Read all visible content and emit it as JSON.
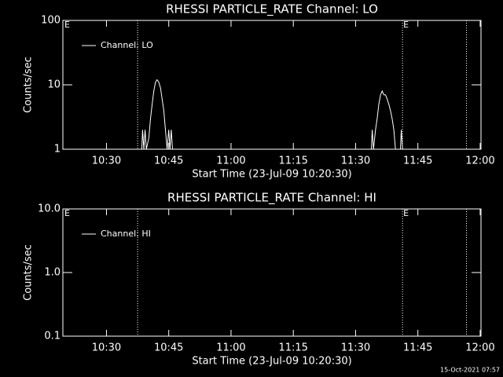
{
  "chart_data": [
    {
      "type": "line",
      "title": "RHESSI PARTICLE_RATE Channel: LO",
      "x_label": "Start Time (23-Jul-09 10:20:30)",
      "y_label": "Counts/sec",
      "log_y": true,
      "legend": "upper left",
      "xlim": [
        619.5,
        720.2
      ],
      "xticks": [
        {
          "value": 630,
          "label": "10:30"
        },
        {
          "value": 645,
          "label": "10:45"
        },
        {
          "value": 660,
          "label": "11:00"
        },
        {
          "value": 675,
          "label": "11:15"
        },
        {
          "value": 690,
          "label": "11:30"
        },
        {
          "value": 705,
          "label": "11:45"
        },
        {
          "value": 720,
          "label": "12:00"
        }
      ],
      "ylim": [
        1,
        100
      ],
      "yticks": [
        1,
        10,
        100
      ],
      "flags": [
        637.5,
        701.3,
        716.7
      ],
      "flag_labels": [
        {
          "x": 619.7,
          "text": "E"
        },
        {
          "x": 701.3,
          "text": "E"
        }
      ],
      "series": [
        {
          "name": "Channel: LO",
          "color": "#ffffff",
          "x": [
            620,
            638.5,
            638.7,
            639.0,
            639.3,
            639.6,
            640.2,
            640.6,
            641.0,
            641.4,
            641.8,
            642.2,
            642.6,
            643.0,
            643.4,
            643.8,
            644.2,
            644.6,
            645.0,
            645.3,
            645.6,
            645.9,
            693.8,
            694.0,
            694.3,
            694.8,
            695.2,
            695.6,
            696.0,
            696.4,
            696.8,
            697.2,
            697.6,
            698.0,
            698.4,
            698.8,
            699.2,
            699.6,
            700.8,
            701.0,
            701.3,
            720
          ],
          "values": [
            1,
            1,
            2,
            1,
            2,
            1,
            1.5,
            3,
            5,
            8,
            11,
            12,
            11,
            9,
            6,
            4,
            2,
            1,
            2,
            1,
            2,
            1,
            1,
            2,
            1,
            2,
            3,
            5,
            7,
            8,
            7,
            7,
            6,
            5,
            4,
            3,
            2,
            1,
            1,
            2,
            1,
            1
          ]
        }
      ]
    },
    {
      "type": "line",
      "title": "RHESSI PARTICLE_RATE Channel: HI",
      "x_label": "Start Time (23-Jul-09 10:20:30)",
      "y_label": "Counts/sec",
      "log_y": true,
      "legend": "upper left",
      "xlim": [
        619.5,
        720.2
      ],
      "xticks": [
        {
          "value": 630,
          "label": "10:30"
        },
        {
          "value": 645,
          "label": "10:45"
        },
        {
          "value": 660,
          "label": "11:00"
        },
        {
          "value": 675,
          "label": "11:15"
        },
        {
          "value": 690,
          "label": "11:30"
        },
        {
          "value": 705,
          "label": "11:45"
        },
        {
          "value": 720,
          "label": "12:00"
        }
      ],
      "ylim": [
        0.1,
        10
      ],
      "yticks": [
        0.1,
        {
          "value": 1,
          "label": "1.0"
        },
        {
          "value": 10,
          "label": "10.0"
        }
      ],
      "flags": [
        637.5,
        701.3,
        716.7
      ],
      "flag_labels": [
        {
          "x": 619.7,
          "text": "E"
        },
        {
          "x": 701.3,
          "text": "E"
        }
      ],
      "series": [
        {
          "name": "Channel: HI",
          "color": "#ffffff",
          "x": [],
          "values": []
        }
      ]
    }
  ],
  "footer": "15-Oct-2021 07:57"
}
